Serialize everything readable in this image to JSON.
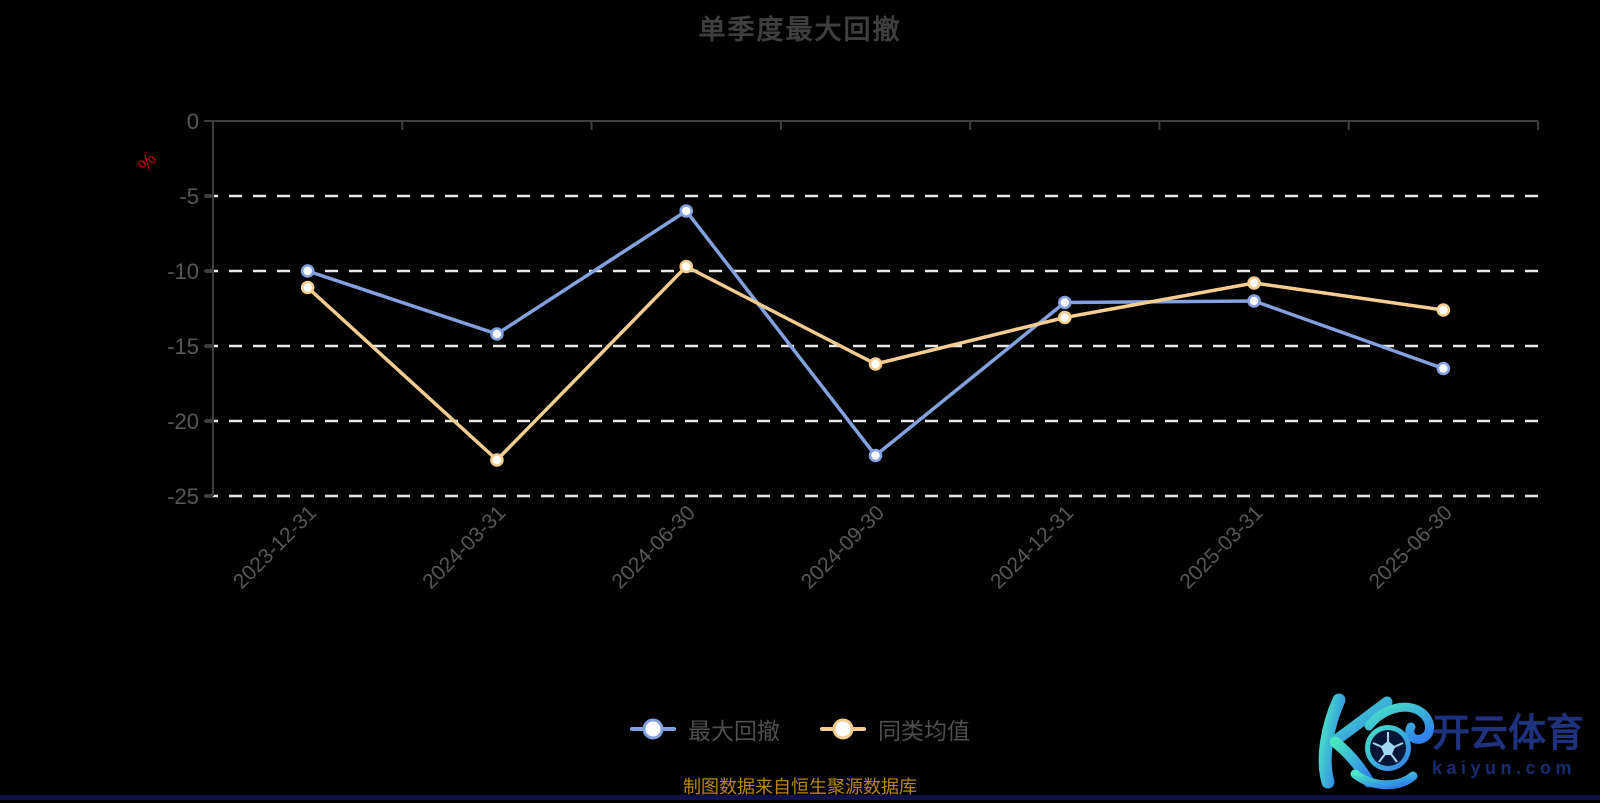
{
  "title": "单季度最大回撤",
  "footer": "制图数据来自恒生聚源数据库",
  "y_axis_unit": "%",
  "legend": [
    {
      "label": "最大回撤",
      "color": "#82a1de"
    },
    {
      "label": "同类均值",
      "color": "#f5cd90"
    }
  ],
  "chart_data": {
    "type": "line",
    "x": [
      "2023-12-31",
      "2024-03-31",
      "2024-06-30",
      "2024-09-30",
      "2024-12-31",
      "2025-03-31",
      "2025-06-30"
    ],
    "series": [
      {
        "name": "最大回撤",
        "color": "#82a1de",
        "values": [
          -10.0,
          -14.2,
          -6.0,
          -22.3,
          -12.1,
          -12.0,
          -16.5
        ]
      },
      {
        "name": "同类均值",
        "color": "#f5cd90",
        "values": [
          -11.1,
          -22.6,
          -9.7,
          -16.2,
          -13.1,
          -10.8,
          -12.6
        ]
      }
    ],
    "title": "单季度最大回撤",
    "xlabel": "",
    "ylabel": "%",
    "ylim": [
      -25,
      0
    ],
    "yticks": [
      0,
      -5,
      -10,
      -15,
      -20,
      -25
    ],
    "grid": "dashed-horizontal-white",
    "legend_position": "bottom",
    "marker": "circle-white-filled",
    "x_label_rotation": -45
  },
  "colors": {
    "background": "#000000",
    "axis_line": "#3d3d3d",
    "axis_label": "#575757",
    "gridline": "#e8e8e8",
    "title": "#3e3e3e",
    "unit_label": "#c40000",
    "footer": "#b8860b",
    "watermark_blue": "#1e3280"
  },
  "watermark": {
    "name": "kaiyun",
    "logo_text": "开云体育",
    "logo_domain": "kaiyun.com"
  }
}
